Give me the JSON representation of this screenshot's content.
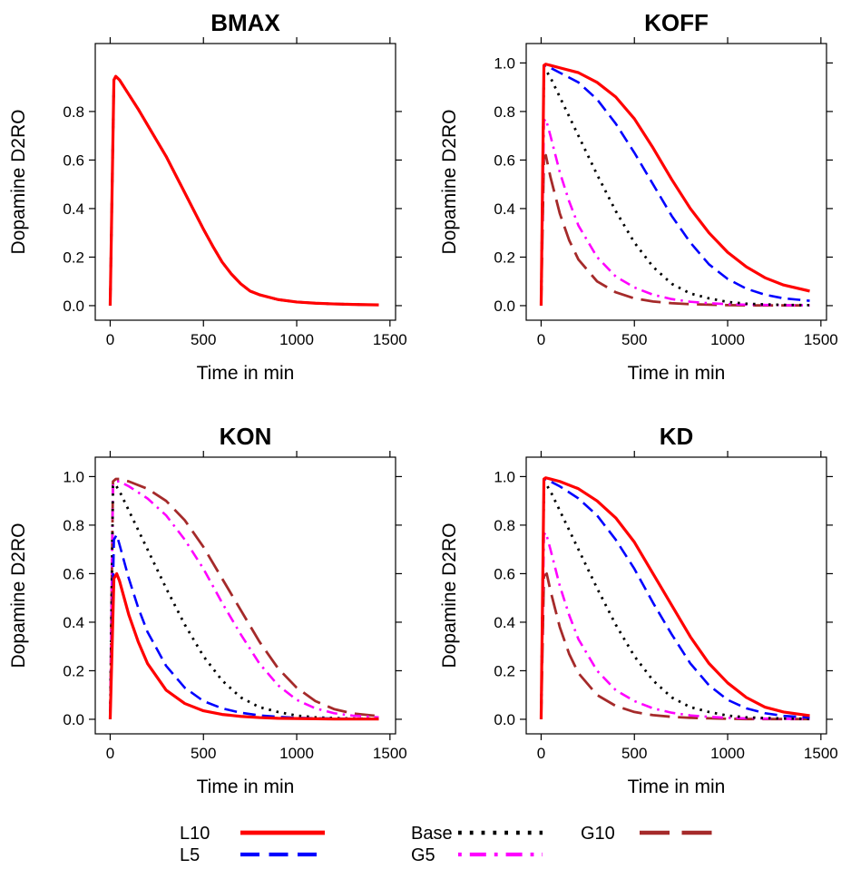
{
  "chart_data": [
    {
      "type": "line",
      "title": "BMAX",
      "xlabel": "Time in min",
      "ylabel": "Dopamine D2RO",
      "xlim": [
        -80,
        1530
      ],
      "ylim": [
        -0.06,
        1.08
      ],
      "xticks": [
        "0",
        "500",
        "1000",
        "1500"
      ],
      "yticks": [
        "0.0",
        "0.2",
        "0.4",
        "0.6",
        "0.8"
      ],
      "series": [
        {
          "name": "L10",
          "x": [
            0,
            20,
            30,
            50,
            100,
            150,
            200,
            250,
            300,
            350,
            400,
            450,
            500,
            550,
            600,
            650,
            700,
            750,
            800,
            900,
            1000,
            1100,
            1200,
            1300,
            1440
          ],
          "y": [
            0,
            0.93,
            0.945,
            0.93,
            0.87,
            0.81,
            0.745,
            0.68,
            0.615,
            0.54,
            0.465,
            0.39,
            0.315,
            0.245,
            0.18,
            0.13,
            0.09,
            0.06,
            0.045,
            0.025,
            0.015,
            0.01,
            0.007,
            0.005,
            0.003
          ]
        },
        {
          "name": "L5",
          "x": [
            0,
            20,
            30,
            50,
            100,
            150,
            200,
            250,
            300,
            350,
            400,
            450,
            500,
            550,
            600,
            650,
            700,
            750,
            800,
            900,
            1000,
            1100,
            1200,
            1300,
            1440
          ],
          "y": [
            0,
            0.93,
            0.945,
            0.93,
            0.87,
            0.81,
            0.745,
            0.68,
            0.615,
            0.54,
            0.465,
            0.39,
            0.315,
            0.245,
            0.18,
            0.13,
            0.09,
            0.06,
            0.045,
            0.025,
            0.015,
            0.01,
            0.007,
            0.005,
            0.003
          ]
        },
        {
          "name": "Base",
          "x": [
            0,
            20,
            30,
            50,
            100,
            150,
            200,
            250,
            300,
            350,
            400,
            450,
            500,
            550,
            600,
            650,
            700,
            750,
            800,
            900,
            1000,
            1100,
            1200,
            1300,
            1440
          ],
          "y": [
            0,
            0.93,
            0.945,
            0.93,
            0.87,
            0.81,
            0.745,
            0.68,
            0.615,
            0.54,
            0.465,
            0.39,
            0.315,
            0.245,
            0.18,
            0.13,
            0.09,
            0.06,
            0.045,
            0.025,
            0.015,
            0.01,
            0.007,
            0.005,
            0.003
          ]
        },
        {
          "name": "G5",
          "x": [
            0,
            20,
            30,
            50,
            100,
            150,
            200,
            250,
            300,
            350,
            400,
            450,
            500,
            550,
            600,
            650,
            700,
            750,
            800,
            900,
            1000,
            1100,
            1200,
            1300,
            1440
          ],
          "y": [
            0,
            0.93,
            0.945,
            0.93,
            0.87,
            0.81,
            0.745,
            0.68,
            0.615,
            0.54,
            0.465,
            0.39,
            0.315,
            0.245,
            0.18,
            0.13,
            0.09,
            0.06,
            0.045,
            0.025,
            0.015,
            0.01,
            0.007,
            0.005,
            0.003
          ]
        },
        {
          "name": "G10",
          "x": [
            0,
            20,
            30,
            50,
            100,
            150,
            200,
            250,
            300,
            350,
            400,
            450,
            500,
            550,
            600,
            650,
            700,
            750,
            800,
            900,
            1000,
            1100,
            1200,
            1300,
            1440
          ],
          "y": [
            0,
            0.93,
            0.945,
            0.93,
            0.87,
            0.81,
            0.745,
            0.68,
            0.615,
            0.54,
            0.465,
            0.39,
            0.315,
            0.245,
            0.18,
            0.13,
            0.09,
            0.06,
            0.045,
            0.025,
            0.015,
            0.01,
            0.007,
            0.005,
            0.003
          ]
        }
      ]
    },
    {
      "type": "line",
      "title": "KOFF",
      "xlabel": "Time in min",
      "ylabel": "Dopamine D2RO",
      "xlim": [
        -80,
        1530
      ],
      "ylim": [
        -0.06,
        1.08
      ],
      "xticks": [
        "0",
        "500",
        "1000",
        "1500"
      ],
      "yticks": [
        "0.0",
        "0.2",
        "0.4",
        "0.6",
        "0.8",
        "1.0"
      ],
      "series": [
        {
          "name": "L10",
          "x": [
            0,
            15,
            25,
            50,
            100,
            200,
            300,
            400,
            500,
            600,
            700,
            800,
            900,
            1000,
            1100,
            1200,
            1300,
            1440
          ],
          "y": [
            0,
            0.99,
            0.995,
            0.99,
            0.98,
            0.96,
            0.92,
            0.86,
            0.77,
            0.65,
            0.52,
            0.4,
            0.3,
            0.22,
            0.16,
            0.115,
            0.085,
            0.06
          ]
        },
        {
          "name": "L5",
          "x": [
            0,
            15,
            25,
            50,
            100,
            200,
            300,
            400,
            500,
            600,
            700,
            800,
            900,
            1000,
            1100,
            1200,
            1300,
            1440
          ],
          "y": [
            0,
            0.985,
            0.99,
            0.98,
            0.96,
            0.92,
            0.85,
            0.75,
            0.63,
            0.5,
            0.37,
            0.26,
            0.17,
            0.11,
            0.07,
            0.045,
            0.03,
            0.02
          ]
        },
        {
          "name": "Base",
          "x": [
            0,
            15,
            25,
            50,
            100,
            150,
            200,
            300,
            400,
            500,
            600,
            700,
            800,
            900,
            1000,
            1100,
            1200,
            1300,
            1440
          ],
          "y": [
            0,
            0.96,
            0.97,
            0.94,
            0.86,
            0.78,
            0.7,
            0.54,
            0.39,
            0.26,
            0.16,
            0.09,
            0.05,
            0.03,
            0.015,
            0.008,
            0.005,
            0.003,
            0.002
          ]
        },
        {
          "name": "G5",
          "x": [
            0,
            15,
            25,
            50,
            100,
            150,
            200,
            300,
            400,
            500,
            600,
            700,
            800,
            900,
            1000,
            1100,
            1200,
            1300,
            1440
          ],
          "y": [
            0,
            0.76,
            0.77,
            0.7,
            0.55,
            0.43,
            0.33,
            0.2,
            0.12,
            0.075,
            0.045,
            0.027,
            0.016,
            0.01,
            0.006,
            0.004,
            0.003,
            0.002,
            0.001
          ]
        },
        {
          "name": "G10",
          "x": [
            0,
            15,
            25,
            50,
            100,
            150,
            200,
            300,
            400,
            500,
            600,
            700,
            800,
            900,
            1000,
            1100,
            1200,
            1300,
            1440
          ],
          "y": [
            0,
            0.61,
            0.62,
            0.53,
            0.38,
            0.27,
            0.19,
            0.1,
            0.055,
            0.03,
            0.017,
            0.01,
            0.006,
            0.004,
            0.002,
            0.001,
            0.001,
            0.001,
            0.001
          ]
        }
      ]
    },
    {
      "type": "line",
      "title": "KON",
      "xlabel": "Time in min",
      "ylabel": "Dopamine D2RO",
      "xlim": [
        -80,
        1530
      ],
      "ylim": [
        -0.06,
        1.08
      ],
      "xticks": [
        "0",
        "500",
        "1000",
        "1500"
      ],
      "yticks": [
        "0.0",
        "0.2",
        "0.4",
        "0.6",
        "0.8",
        "1.0"
      ],
      "series": [
        {
          "name": "L10",
          "x": [
            0,
            20,
            35,
            50,
            100,
            150,
            200,
            300,
            400,
            500,
            600,
            700,
            800,
            900,
            1000,
            1100,
            1200,
            1300,
            1440
          ],
          "y": [
            0,
            0.58,
            0.6,
            0.57,
            0.43,
            0.32,
            0.23,
            0.12,
            0.065,
            0.035,
            0.02,
            0.012,
            0.007,
            0.004,
            0.003,
            0.002,
            0.001,
            0.001,
            0.001
          ]
        },
        {
          "name": "L5",
          "x": [
            0,
            20,
            35,
            50,
            100,
            150,
            200,
            300,
            400,
            500,
            600,
            700,
            800,
            900,
            1000,
            1100,
            1200,
            1300,
            1440
          ],
          "y": [
            0,
            0.74,
            0.76,
            0.72,
            0.58,
            0.46,
            0.36,
            0.22,
            0.13,
            0.075,
            0.045,
            0.027,
            0.016,
            0.01,
            0.006,
            0.004,
            0.003,
            0.002,
            0.001
          ]
        },
        {
          "name": "Base",
          "x": [
            0,
            15,
            25,
            50,
            100,
            150,
            200,
            300,
            400,
            500,
            600,
            700,
            800,
            900,
            1000,
            1100,
            1200,
            1300,
            1440
          ],
          "y": [
            0,
            0.96,
            0.97,
            0.94,
            0.86,
            0.78,
            0.7,
            0.54,
            0.39,
            0.26,
            0.16,
            0.09,
            0.05,
            0.03,
            0.015,
            0.008,
            0.005,
            0.003,
            0.002
          ]
        },
        {
          "name": "G5",
          "x": [
            0,
            15,
            30,
            50,
            100,
            200,
            300,
            400,
            500,
            600,
            700,
            800,
            900,
            1000,
            1100,
            1200,
            1300,
            1440
          ],
          "y": [
            0,
            0.97,
            0.98,
            0.98,
            0.96,
            0.91,
            0.84,
            0.74,
            0.62,
            0.48,
            0.35,
            0.23,
            0.14,
            0.08,
            0.045,
            0.025,
            0.015,
            0.008
          ]
        },
        {
          "name": "G10",
          "x": [
            0,
            15,
            30,
            50,
            100,
            200,
            300,
            400,
            500,
            600,
            700,
            800,
            900,
            1000,
            1100,
            1200,
            1300,
            1440
          ],
          "y": [
            0,
            0.98,
            0.99,
            0.99,
            0.98,
            0.95,
            0.9,
            0.82,
            0.71,
            0.58,
            0.45,
            0.32,
            0.21,
            0.13,
            0.075,
            0.042,
            0.024,
            0.013
          ]
        }
      ]
    },
    {
      "type": "line",
      "title": "KD",
      "xlabel": "Time in min",
      "ylabel": "Dopamine D2RO",
      "xlim": [
        -80,
        1530
      ],
      "ylim": [
        -0.06,
        1.08
      ],
      "xticks": [
        "0",
        "500",
        "1000",
        "1500"
      ],
      "yticks": [
        "0.0",
        "0.2",
        "0.4",
        "0.6",
        "0.8",
        "1.0"
      ],
      "series": [
        {
          "name": "L10",
          "x": [
            0,
            15,
            25,
            50,
            100,
            200,
            300,
            400,
            500,
            600,
            700,
            800,
            900,
            1000,
            1100,
            1200,
            1300,
            1440
          ],
          "y": [
            0,
            0.99,
            0.995,
            0.99,
            0.98,
            0.95,
            0.9,
            0.83,
            0.73,
            0.6,
            0.47,
            0.34,
            0.23,
            0.15,
            0.09,
            0.05,
            0.03,
            0.015
          ]
        },
        {
          "name": "L5",
          "x": [
            0,
            15,
            25,
            50,
            100,
            200,
            300,
            400,
            500,
            600,
            700,
            800,
            900,
            1000,
            1100,
            1200,
            1300,
            1440
          ],
          "y": [
            0,
            0.985,
            0.99,
            0.98,
            0.96,
            0.91,
            0.84,
            0.74,
            0.62,
            0.48,
            0.35,
            0.23,
            0.14,
            0.08,
            0.045,
            0.025,
            0.014,
            0.007
          ]
        },
        {
          "name": "Base",
          "x": [
            0,
            15,
            25,
            50,
            100,
            150,
            200,
            300,
            400,
            500,
            600,
            700,
            800,
            900,
            1000,
            1100,
            1200,
            1300,
            1440
          ],
          "y": [
            0,
            0.96,
            0.97,
            0.94,
            0.86,
            0.78,
            0.7,
            0.54,
            0.39,
            0.26,
            0.16,
            0.09,
            0.05,
            0.03,
            0.015,
            0.008,
            0.005,
            0.003,
            0.002
          ]
        },
        {
          "name": "G5",
          "x": [
            0,
            15,
            25,
            50,
            100,
            150,
            200,
            300,
            400,
            500,
            600,
            700,
            800,
            900,
            1000,
            1100,
            1200,
            1300,
            1440
          ],
          "y": [
            0,
            0.76,
            0.77,
            0.7,
            0.55,
            0.43,
            0.33,
            0.2,
            0.12,
            0.075,
            0.045,
            0.027,
            0.016,
            0.01,
            0.006,
            0.004,
            0.003,
            0.002,
            0.001
          ]
        },
        {
          "name": "G10",
          "x": [
            0,
            15,
            30,
            50,
            100,
            150,
            200,
            300,
            400,
            500,
            600,
            700,
            800,
            900,
            1000,
            1100,
            1200,
            1300,
            1440
          ],
          "y": [
            0,
            0.59,
            0.6,
            0.53,
            0.38,
            0.27,
            0.19,
            0.1,
            0.055,
            0.03,
            0.017,
            0.01,
            0.006,
            0.004,
            0.002,
            0.001,
            0.001,
            0.001,
            0.001
          ]
        }
      ]
    }
  ],
  "legend": {
    "items": [
      {
        "name": "L10",
        "color": "#ff0000",
        "style": "solid"
      },
      {
        "name": "L5",
        "color": "#0000ff",
        "style": "dashed"
      },
      {
        "name": "Base",
        "color": "#000000",
        "style": "dotted"
      },
      {
        "name": "G5",
        "color": "#ff00ff",
        "style": "dotdash"
      },
      {
        "name": "G10",
        "color": "#a52a2a",
        "style": "longdash"
      }
    ]
  }
}
